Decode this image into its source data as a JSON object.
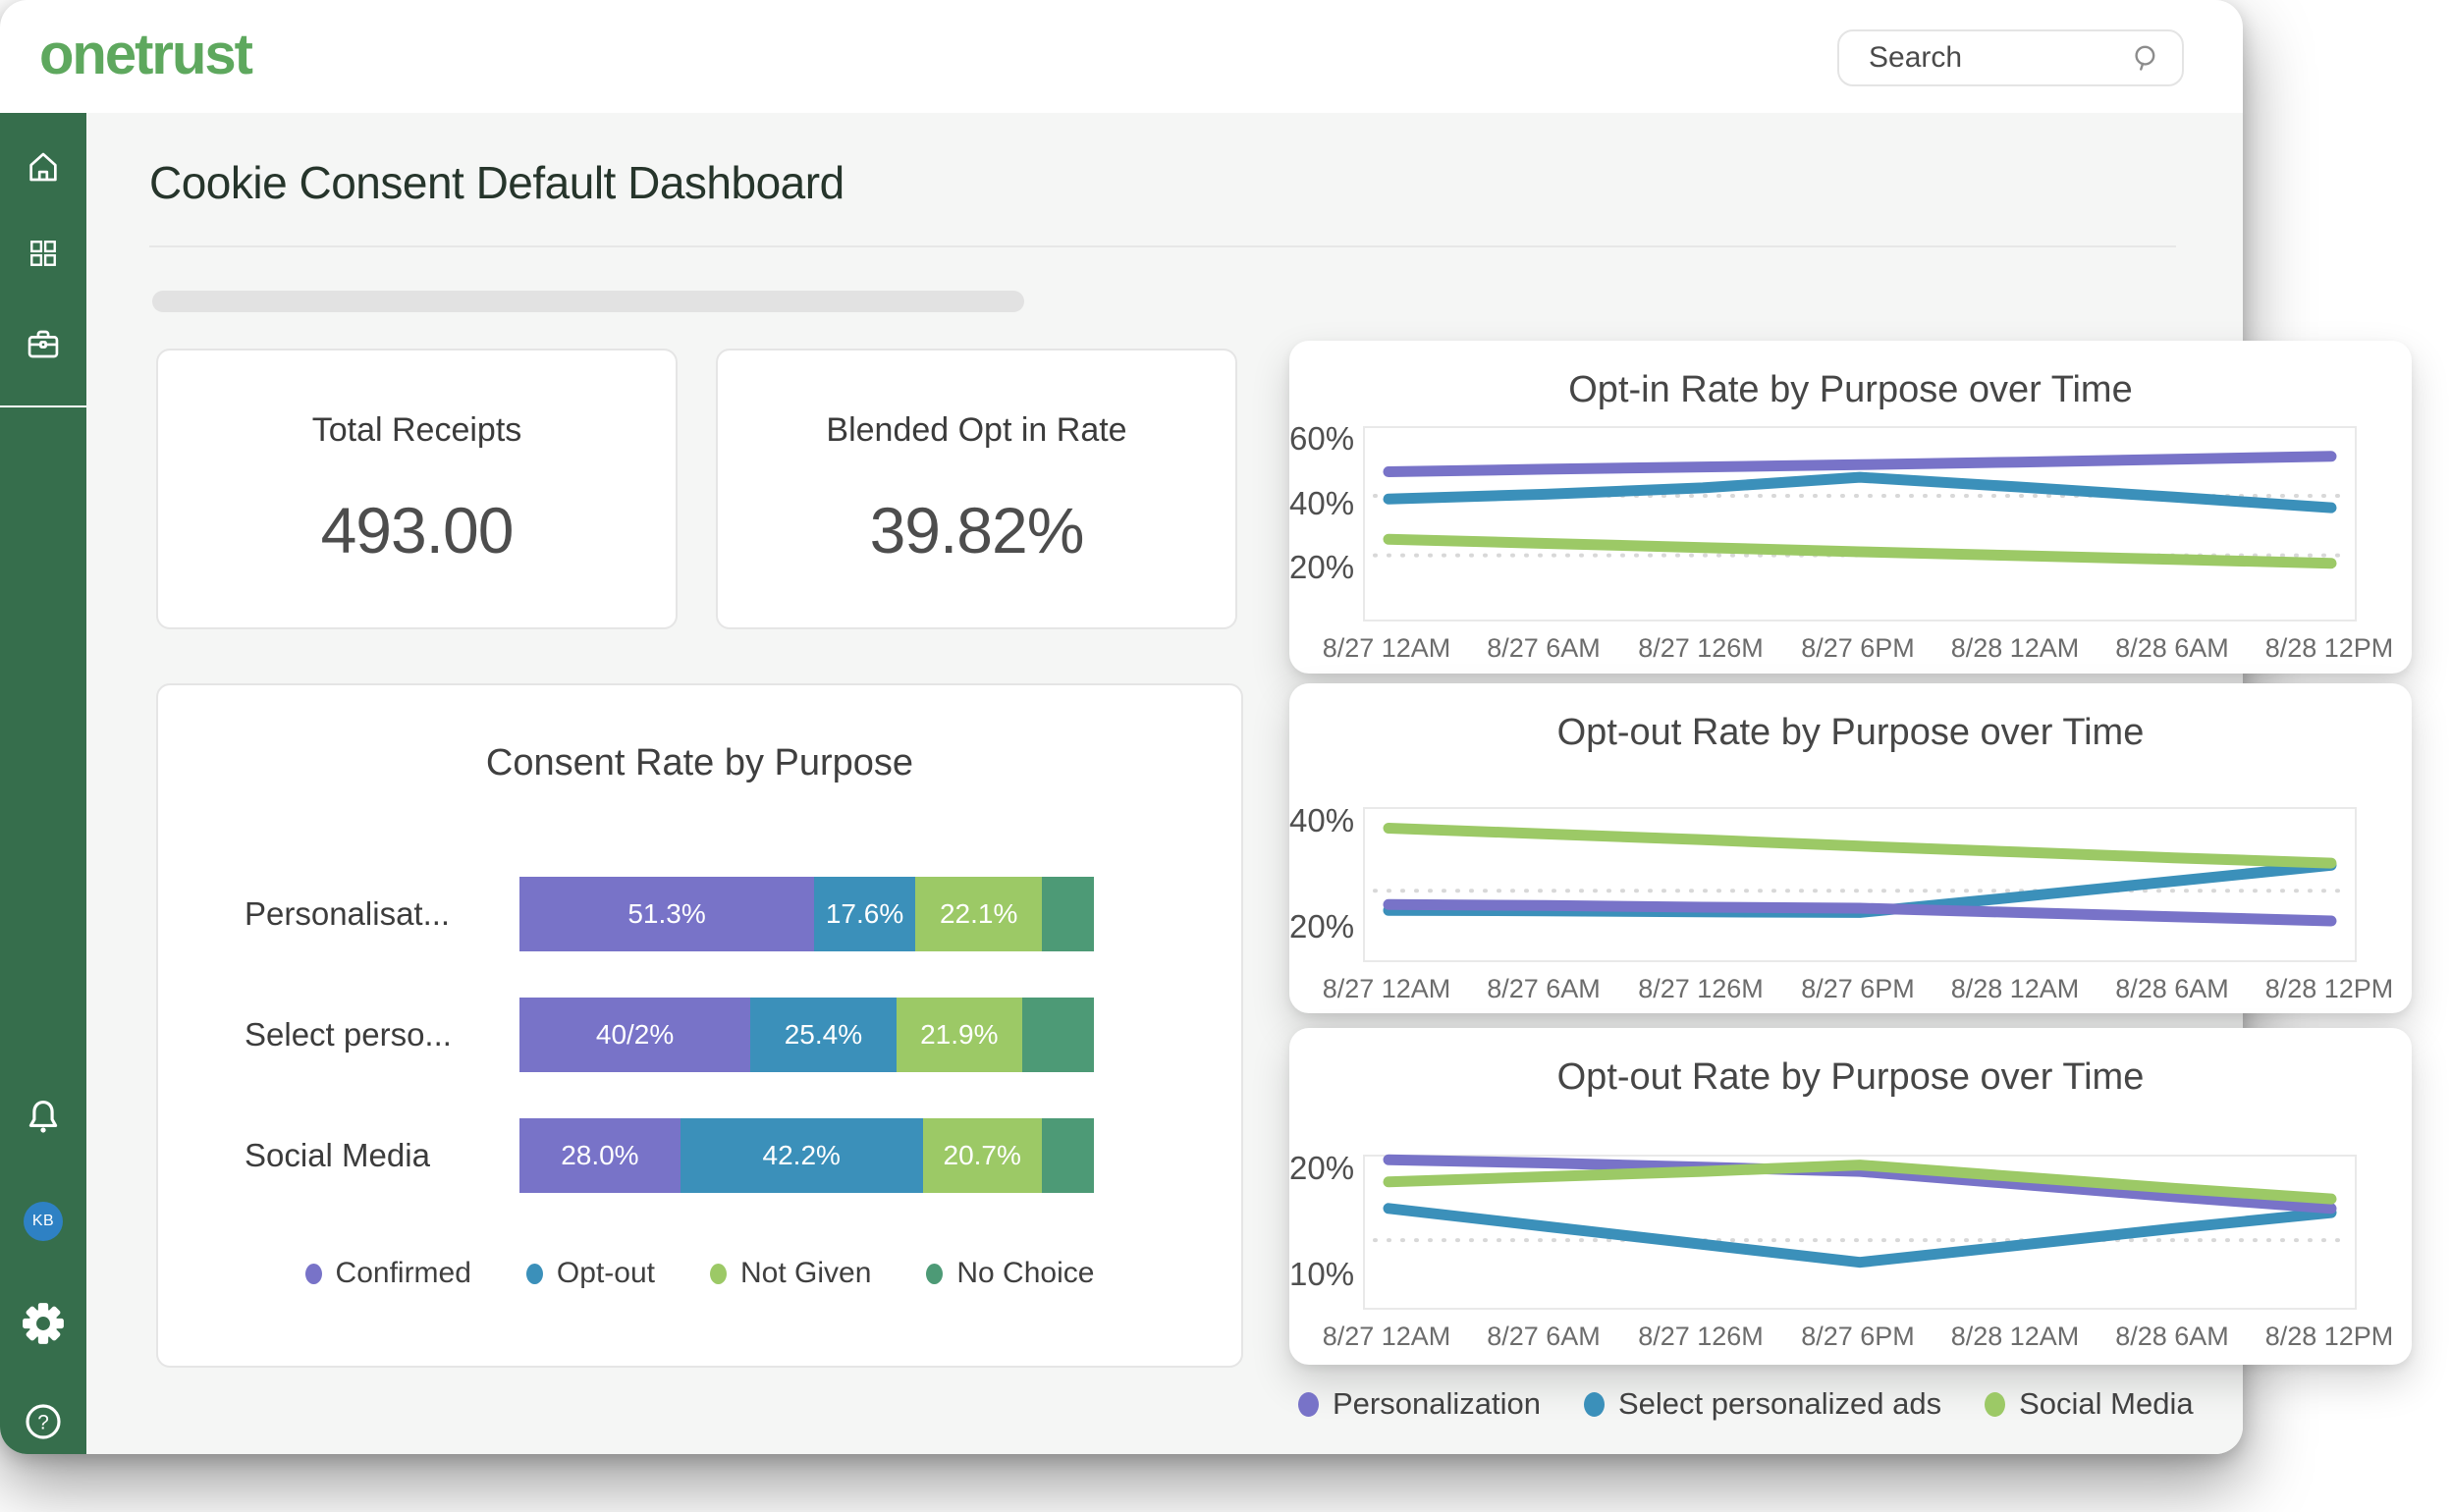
{
  "topbar": {
    "logo": "onetrust",
    "search_placeholder": "Search"
  },
  "sidebar": {
    "avatar_initials": "KB"
  },
  "page": {
    "title": "Cookie Consent Default Dashboard"
  },
  "metrics": [
    {
      "label": "Total Receipts",
      "value": "493.00"
    },
    {
      "label": "Blended Opt in Rate",
      "value": "39.82%"
    }
  ],
  "colors": {
    "purple": "#7873C8",
    "blue": "#3B90BA",
    "green": "#9CC966",
    "teal": "#4D9A76",
    "sidebar_green": "#366E4C",
    "logo_green": "#5EA85E",
    "avatar_blue": "#2E81C4",
    "gridline": "#D8D8D8"
  },
  "chart_data": [
    {
      "type": "bar",
      "title": "Consent Rate by Purpose",
      "orientation": "horizontal-stacked",
      "categories": [
        "Personalisat...",
        "Select perso...",
        "Social Media"
      ],
      "series": [
        {
          "name": "Confirmed",
          "color": "purple",
          "values": [
            51.3,
            40.2,
            28.0
          ],
          "value_labels": [
            "51.3%",
            "40/2%",
            "28.0%"
          ]
        },
        {
          "name": "Opt-out",
          "color": "blue",
          "values": [
            17.6,
            25.4,
            42.2
          ],
          "value_labels": [
            "17.6%",
            "25.4%",
            "42.2%"
          ]
        },
        {
          "name": "Not Given",
          "color": "green",
          "values": [
            22.1,
            21.9,
            20.7
          ],
          "value_labels": [
            "22.1%",
            "21.9%",
            "20.7%"
          ]
        },
        {
          "name": "No Choice",
          "color": "teal",
          "values": [
            9.0,
            12.5,
            9.1
          ],
          "value_labels": [
            "",
            "",
            ""
          ]
        }
      ],
      "legend": [
        "Confirmed",
        "Opt-out",
        "Not Given",
        "No Choice"
      ],
      "legend_position": "bottom-center"
    },
    {
      "type": "line",
      "title": "Opt-in Rate by Purpose over Time",
      "x_labels": [
        "8/27 12AM",
        "8/27 6AM",
        "8/27 126M",
        "8/27 6PM",
        "8/28 12AM",
        "8/28 6AM",
        "8/28 12PM"
      ],
      "y_ticks": [
        60,
        40,
        20
      ],
      "ylim": [
        4.5,
        64.1
      ],
      "gridlines": [
        43,
        24.5
      ],
      "series": [
        {
          "name": "Personalization",
          "color": "purple",
          "values": [
            50.5,
            51.3,
            52.0,
            52.7,
            53.5,
            54.4,
            55.3
          ]
        },
        {
          "name": "Select personalized ads",
          "color": "blue",
          "values": [
            42.0,
            43.5,
            45.5,
            48.8,
            45.8,
            42.6,
            39.3
          ]
        },
        {
          "name": "Social Media",
          "color": "green",
          "values": [
            29.5,
            28.2,
            26.9,
            25.6,
            24.4,
            23.2,
            22.0
          ]
        }
      ]
    },
    {
      "type": "line",
      "title": "Opt-out Rate by Purpose over Time",
      "x_labels": [
        "8/27 12AM",
        "8/27 6AM",
        "8/27 126M",
        "8/27 6PM",
        "8/28 12AM",
        "8/28 6AM",
        "8/28 12PM"
      ],
      "y_ticks": [
        40,
        20
      ],
      "ylim": [
        14.1,
        42.6
      ],
      "gridlines": [
        27.2
      ],
      "series": [
        {
          "name": "Select personalized ads",
          "color": "blue",
          "values": [
            23.5,
            23.4,
            23.2,
            23.1,
            26.0,
            29.0,
            32.0
          ]
        },
        {
          "name": "Personalization",
          "color": "purple",
          "values": [
            24.6,
            24.4,
            24.1,
            23.9,
            23.1,
            22.3,
            21.5
          ]
        },
        {
          "name": "Social Media",
          "color": "green",
          "values": [
            39.0,
            37.9,
            36.8,
            35.6,
            34.5,
            33.4,
            32.4
          ]
        }
      ]
    },
    {
      "type": "line",
      "title": "Opt-out Rate by Purpose over Time",
      "x_labels": [
        "8/27 12AM",
        "8/27 6AM",
        "8/27 126M",
        "8/27 6PM",
        "8/28 12AM",
        "8/28 6AM",
        "8/28 12PM"
      ],
      "y_ticks": [
        20,
        10
      ],
      "ylim": [
        7.0,
        21.3
      ],
      "gridlines": [
        13.4
      ],
      "series": [
        {
          "name": "Select personalized ads",
          "color": "blue",
          "values": [
            16.4,
            14.7,
            13.0,
            11.3,
            12.9,
            14.5,
            16.0
          ]
        },
        {
          "name": "Personalization",
          "color": "purple",
          "values": [
            21.0,
            20.7,
            20.3,
            19.9,
            18.7,
            17.5,
            16.4
          ]
        },
        {
          "name": "Social Media",
          "color": "green",
          "values": [
            18.9,
            19.4,
            19.9,
            20.5,
            19.4,
            18.3,
            17.3
          ]
        }
      ]
    }
  ],
  "line_legend": [
    {
      "label": "Personalization",
      "color": "purple"
    },
    {
      "label": "Select personalized ads",
      "color": "blue"
    },
    {
      "label": "Social Media",
      "color": "green"
    }
  ]
}
